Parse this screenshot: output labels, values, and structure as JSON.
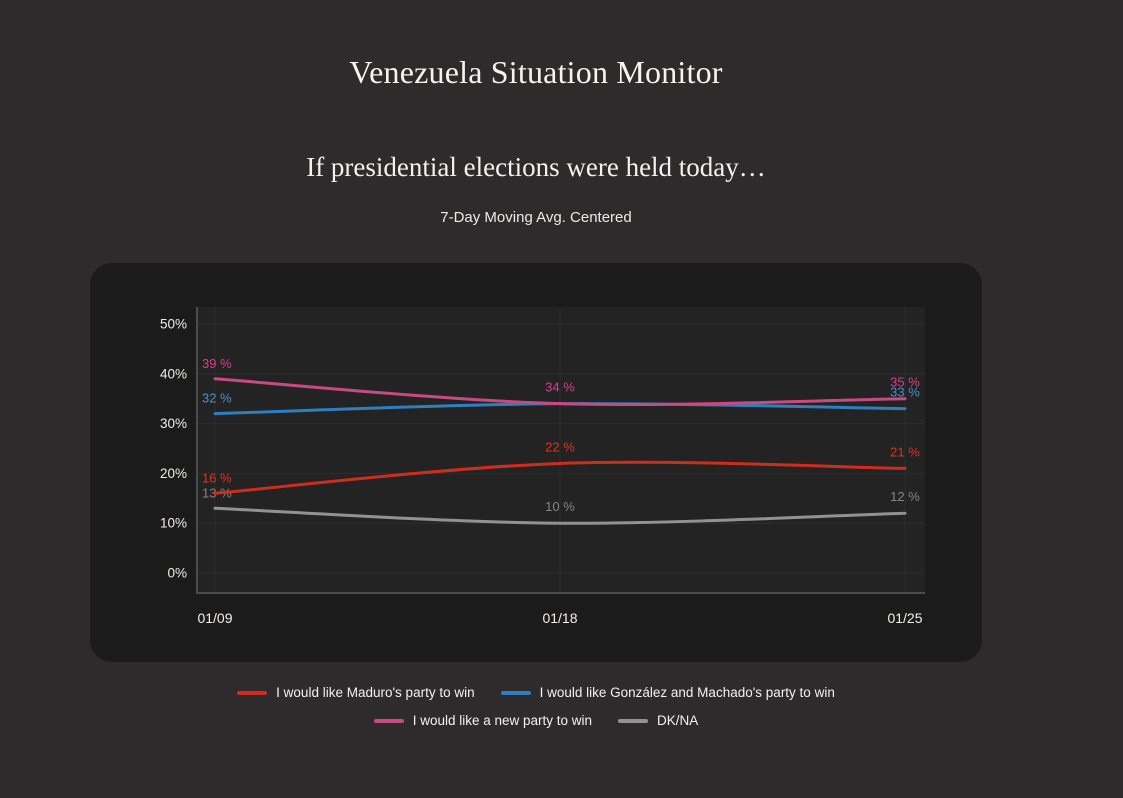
{
  "header": {
    "title": "Venezuela Situation Monitor",
    "subtitle": "If presidential elections were held today…",
    "note": "7-Day Moving Avg. Centered"
  },
  "colors": {
    "page_bg": "#2d2b2b",
    "panel_bg": "#1b1b1b",
    "plot_bg": "#232323",
    "grid": "#2e2e2e",
    "axis": "#4c4c4c",
    "tick_text": "#f0ede4",
    "legend_text": "#f2f2f2"
  },
  "chart_data": {
    "type": "line",
    "title": "If presidential elections were held today…",
    "subtitle": "7-Day Moving Avg. Centered",
    "x": [
      "01/09",
      "01/18",
      "01/25"
    ],
    "ylim": [
      0,
      50
    ],
    "ytick_values": [
      0,
      10,
      20,
      30,
      40,
      50
    ],
    "ytick_labels": [
      "0%",
      "10%",
      "20%",
      "30%",
      "40%",
      "50%"
    ],
    "grid": true,
    "legend_position": "bottom",
    "series": [
      {
        "name": "I would like Maduro's party to win",
        "values": [
          16,
          22,
          21
        ],
        "point_labels": [
          "16 %",
          "22 %",
          "21 %"
        ],
        "label_visible": [
          true,
          true,
          true
        ],
        "color": "#d02c1e",
        "label_color": "#e3301f"
      },
      {
        "name": "I would like González and Machado's party to win",
        "values": [
          32,
          34,
          33
        ],
        "point_labels": [
          "32 %",
          "34 %",
          "33 %"
        ],
        "label_visible": [
          true,
          false,
          true
        ],
        "color": "#2d7fc0",
        "label_color": "#4a90cc"
      },
      {
        "name": "I would like a new party to win",
        "values": [
          39,
          34,
          35
        ],
        "point_labels": [
          "39 %",
          "34 %",
          "35 %"
        ],
        "label_visible": [
          true,
          true,
          true
        ],
        "color": "#c94983",
        "label_color": "#e23a93"
      },
      {
        "name": "DK/NA",
        "values": [
          13,
          10,
          12
        ],
        "point_labels": [
          "13 %",
          "10 %",
          "12 %"
        ],
        "label_visible": [
          true,
          true,
          true
        ],
        "color": "#929292",
        "label_color": "#858585"
      }
    ],
    "legend_rows": [
      [
        0,
        1
      ],
      [
        2,
        3
      ]
    ]
  }
}
